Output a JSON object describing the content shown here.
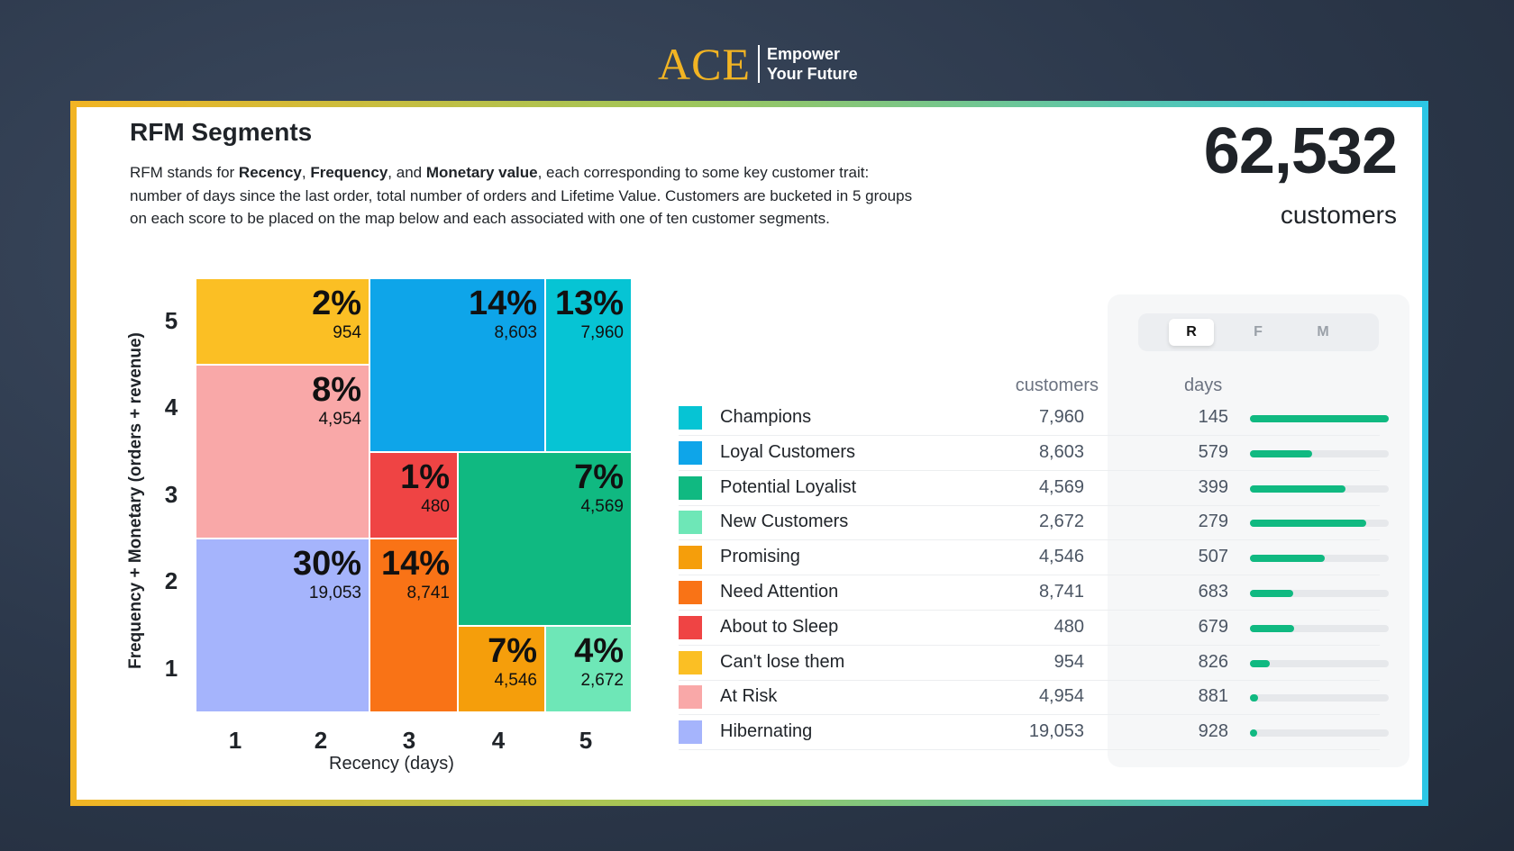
{
  "logo": {
    "brand": "ACE",
    "tagline1": "Empower",
    "tagline2": "Your Future"
  },
  "header": {
    "title": "RFM Segments",
    "desc_parts": [
      "RFM stands for ",
      "Recency",
      ", ",
      "Frequency",
      ", and ",
      "Monetary value",
      ", each corresponding to some key customer trait: number of days since the last order, total number of orders and Lifetime Value. Customers are bucketed in 5 groups on each score to be placed on the map below and each associated with one of ten customer segments."
    ]
  },
  "total": {
    "value": "62,532",
    "label": "customers"
  },
  "map": {
    "y_title": "Frequency + Monetary (orders + revenue)",
    "x_title": "Recency (days)",
    "y_ticks": [
      "5",
      "4",
      "3",
      "2",
      "1"
    ],
    "x_ticks": [
      "1",
      "2",
      "3",
      "4",
      "5"
    ],
    "cells": [
      {
        "name": "Can't lose them",
        "pct": "2%",
        "count": "954",
        "color": "#fbbf24"
      },
      {
        "name": "Loyal Customers",
        "pct": "14%",
        "count": "8,603",
        "color": "#0ea5e9"
      },
      {
        "name": "Champions",
        "pct": "13%",
        "count": "7,960",
        "color": "#06c4d4"
      },
      {
        "name": "At Risk",
        "pct": "8%",
        "count": "4,954",
        "color": "#f9a8a8"
      },
      {
        "name": "About to Sleep",
        "pct": "1%",
        "count": "480",
        "color": "#ef4444"
      },
      {
        "name": "Potential Loyalist",
        "pct": "7%",
        "count": "4,569",
        "color": "#10b981"
      },
      {
        "name": "Hibernating",
        "pct": "30%",
        "count": "19,053",
        "color": "#a5b4fc"
      },
      {
        "name": "Need Attention",
        "pct": "14%",
        "count": "8,741",
        "color": "#f97316"
      },
      {
        "name": "Promising",
        "pct": "7%",
        "count": "4,546",
        "color": "#f59e0b"
      },
      {
        "name": "New Customers",
        "pct": "4%",
        "count": "2,672",
        "color": "#6ee7b7"
      }
    ]
  },
  "toggle": {
    "options": [
      "R",
      "F",
      "M"
    ],
    "selected": "R"
  },
  "table": {
    "col_customers": "customers",
    "col_days": "days",
    "max_days": 145,
    "rows": [
      {
        "label": "Champions",
        "customers": "7,960",
        "days": "145",
        "bar": 1.0,
        "color": "#06c4d4"
      },
      {
        "label": "Loyal Customers",
        "customers": "8,603",
        "days": "579",
        "bar": 0.45,
        "color": "#0ea5e9"
      },
      {
        "label": "Potential Loyalist",
        "customers": "4,569",
        "days": "399",
        "bar": 0.69,
        "color": "#10b981"
      },
      {
        "label": "New Customers",
        "customers": "2,672",
        "days": "279",
        "bar": 0.84,
        "color": "#6ee7b7"
      },
      {
        "label": "Promising",
        "customers": "4,546",
        "days": "507",
        "bar": 0.54,
        "color": "#f59e0b"
      },
      {
        "label": "Need Attention",
        "customers": "8,741",
        "days": "683",
        "bar": 0.31,
        "color": "#f97316"
      },
      {
        "label": "About to Sleep",
        "customers": "480",
        "days": "679",
        "bar": 0.32,
        "color": "#ef4444"
      },
      {
        "label": "Can't lose them",
        "customers": "954",
        "days": "826",
        "bar": 0.14,
        "color": "#fbbf24"
      },
      {
        "label": "At Risk",
        "customers": "4,954",
        "days": "881",
        "bar": 0.06,
        "color": "#f9a8a8"
      },
      {
        "label": "Hibernating",
        "customers": "19,053",
        "days": "928",
        "bar": 0.05,
        "color": "#a5b4fc"
      }
    ]
  }
}
